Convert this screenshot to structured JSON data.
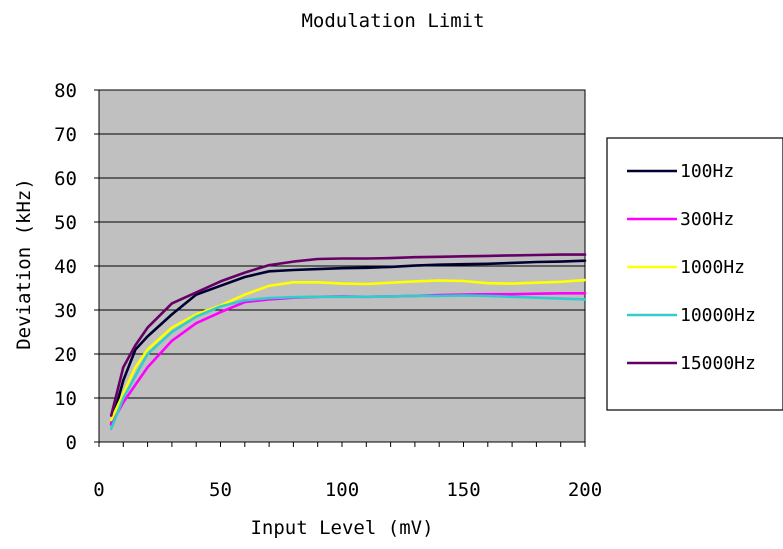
{
  "chart_data": {
    "type": "line",
    "title": "Modulation Limit",
    "xlabel": "Input Level (mV)",
    "ylabel": "Deviation (kHz)",
    "xlim": [
      0,
      200
    ],
    "ylim": [
      0,
      80
    ],
    "xticks": [
      0,
      50,
      100,
      150,
      200
    ],
    "yticks": [
      0,
      10,
      20,
      30,
      40,
      50,
      60,
      70,
      80
    ],
    "grid": true,
    "plot_background": "#c0c0c0",
    "legend_position": "right",
    "x": [
      5,
      10,
      15,
      20,
      30,
      40,
      50,
      60,
      70,
      80,
      90,
      100,
      110,
      120,
      130,
      140,
      150,
      160,
      170,
      180,
      190,
      200
    ],
    "series": [
      {
        "name": "100Hz",
        "color": "#000033",
        "values": [
          4,
          14,
          21,
          24,
          29,
          33.5,
          35.5,
          37.5,
          38.8,
          39.1,
          39.3,
          39.5,
          39.6,
          39.8,
          40.1,
          40.3,
          40.4,
          40.5,
          40.7,
          40.9,
          41.0,
          41.2
        ]
      },
      {
        "name": "300Hz",
        "color": "#ff00ff",
        "values": [
          4,
          9,
          13,
          17,
          23,
          27,
          29.5,
          31.8,
          32.4,
          32.8,
          33.0,
          33.1,
          33.0,
          33.1,
          33.2,
          33.4,
          33.5,
          33.6,
          33.6,
          33.7,
          33.8,
          33.8
        ]
      },
      {
        "name": "1000Hz",
        "color": "#ffff00",
        "values": [
          5,
          11,
          17,
          21,
          26,
          29,
          31,
          33.5,
          35.5,
          36.3,
          36.3,
          36.0,
          35.9,
          36.2,
          36.5,
          36.7,
          36.6,
          36.1,
          36.0,
          36.2,
          36.4,
          36.8
        ]
      },
      {
        "name": "10000Hz",
        "color": "#33cccc",
        "values": [
          3,
          10,
          15,
          20,
          25,
          28.5,
          30.8,
          32.2,
          32.7,
          32.9,
          33.0,
          33.0,
          33.0,
          33.1,
          33.2,
          33.2,
          33.3,
          33.2,
          33.0,
          32.8,
          32.6,
          32.4
        ]
      },
      {
        "name": "15000Hz",
        "color": "#660066",
        "values": [
          6,
          17,
          22,
          26,
          31.5,
          34,
          36.5,
          38.5,
          40.2,
          41.0,
          41.6,
          41.7,
          41.7,
          41.8,
          42.0,
          42.1,
          42.2,
          42.3,
          42.4,
          42.5,
          42.6,
          42.6
        ]
      }
    ]
  }
}
